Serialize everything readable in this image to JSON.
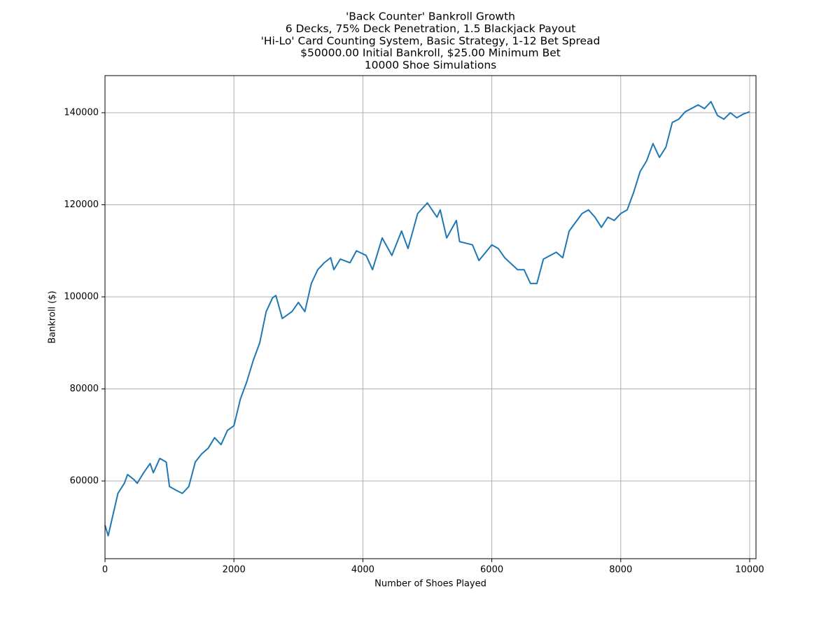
{
  "chart_data": {
    "type": "line",
    "title": [
      "'Back Counter' Bankroll Growth",
      "6 Decks, 75% Deck Penetration, 1.5 Blackjack Payout",
      "'Hi-Lo' Card Counting System, Basic Strategy, 1-12 Bet Spread",
      "$50000.00 Initial Bankroll, $25.00 Minimum Bet",
      "10000 Shoe Simulations"
    ],
    "x_label": "Number of Shoes Played",
    "y_label": "Bankroll ($)",
    "x": [
      0,
      50,
      100,
      150,
      200,
      300,
      350,
      450,
      500,
      600,
      700,
      750,
      850,
      950,
      1000,
      1100,
      1200,
      1300,
      1400,
      1500,
      1600,
      1700,
      1800,
      1900,
      2000,
      2100,
      2200,
      2300,
      2400,
      2500,
      2600,
      2650,
      2750,
      2900,
      3000,
      3100,
      3200,
      3300,
      3400,
      3500,
      3550,
      3650,
      3800,
      3900,
      4050,
      4150,
      4300,
      4450,
      4600,
      4700,
      4850,
      5000,
      5150,
      5200,
      5300,
      5450,
      5500,
      5700,
      5800,
      6000,
      6100,
      6200,
      6400,
      6500,
      6600,
      6700,
      6800,
      7000,
      7100,
      7200,
      7400,
      7500,
      7600,
      7700,
      7800,
      7900,
      8000,
      8100,
      8200,
      8300,
      8400,
      8500,
      8600,
      8700,
      8800,
      8900,
      9000,
      9200,
      9300,
      9400,
      9500,
      9600,
      9700,
      9800,
      9900,
      10000
    ],
    "series": [
      {
        "name": "Bankroll",
        "color": "#1f77b4",
        "values": [
          50400,
          48100,
          51200,
          54200,
          57300,
          59500,
          61400,
          60300,
          59500,
          61800,
          63800,
          61800,
          64900,
          64100,
          58800,
          58000,
          57300,
          58800,
          64100,
          65900,
          67100,
          69400,
          67900,
          71000,
          72000,
          77800,
          81600,
          86200,
          90000,
          96800,
          99800,
          100300,
          95300,
          96800,
          98800,
          96800,
          102900,
          105900,
          107400,
          108500,
          105900,
          108200,
          107400,
          110000,
          109000,
          105900,
          112800,
          109000,
          114300,
          110500,
          118100,
          120400,
          117300,
          118900,
          112800,
          116600,
          112000,
          111300,
          107900,
          111300,
          110500,
          108500,
          105900,
          105900,
          102900,
          102900,
          108200,
          109700,
          108500,
          114300,
          118100,
          118900,
          117300,
          115100,
          117300,
          116600,
          118100,
          118900,
          122700,
          127200,
          129500,
          133300,
          130300,
          132500,
          137900,
          138600,
          140200,
          141700,
          140900,
          142400,
          139400,
          138600,
          140000,
          138900,
          139700,
          140200
        ]
      }
    ],
    "xlim": [
      0,
      10098
    ],
    "ylim": [
      43118,
      148061
    ],
    "xticks": [
      0,
      2000,
      4000,
      6000,
      8000,
      10000
    ],
    "yticks": [
      60000,
      80000,
      100000,
      120000,
      140000
    ],
    "grid": true
  }
}
